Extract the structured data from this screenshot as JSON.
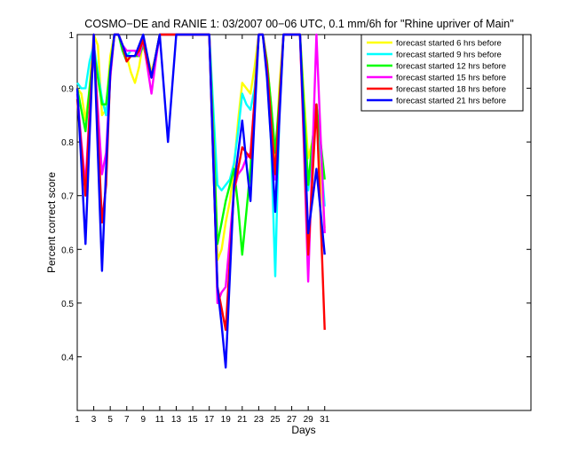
{
  "chart_data": {
    "type": "line",
    "title": "COSMO−DE and RANIE 1: 03/2007 00−06 UTC, 0.1 mm/6h for \"Rhine upriver of Main\"",
    "xlabel": "Days",
    "ylabel": "Percent correct score",
    "xlim": [
      1,
      56
    ],
    "ylim": [
      0.3,
      1.0
    ],
    "xticks": [
      1,
      3,
      5,
      7,
      9,
      11,
      13,
      15,
      17,
      19,
      21,
      23,
      25,
      27,
      29,
      31
    ],
    "yticks": [
      0.4,
      0.5,
      0.6,
      0.7,
      0.8,
      0.9,
      1
    ],
    "ytick_labels": [
      "0.4",
      "0.5",
      "0.6",
      "0.7",
      "0.8",
      "0.9",
      "1"
    ],
    "legend_position": "top-right",
    "x": [
      1,
      1.5,
      2,
      2.5,
      3,
      3.5,
      4,
      4.5,
      5,
      5.5,
      6,
      6.5,
      7,
      7.5,
      8,
      8.5,
      9,
      9.5,
      10,
      10.5,
      11,
      11.5,
      12,
      12.5,
      13,
      13.5,
      14,
      14.5,
      15,
      15.5,
      16,
      16.5,
      17,
      17.5,
      18,
      18.5,
      19,
      19.5,
      20,
      20.5,
      21,
      21.5,
      22,
      22.5,
      23,
      23.5,
      24,
      24.5,
      25,
      25.5,
      26,
      26.5,
      27,
      27.5,
      28,
      28.5,
      29,
      29.5,
      30,
      30.5,
      31
    ],
    "series": [
      {
        "name": "forecast started 6 hrs before",
        "color": "#ffff00",
        "values": [
          0.9,
          0.89,
          0.84,
          0.9,
          1.0,
          0.98,
          0.85,
          0.86,
          0.96,
          1.0,
          1.0,
          0.97,
          0.96,
          0.93,
          0.91,
          0.94,
          0.99,
          0.96,
          0.93,
          0.96,
          1.0,
          1.0,
          1.0,
          1.0,
          1.0,
          1.0,
          1.0,
          1.0,
          1.0,
          1.0,
          1.0,
          1.0,
          1.0,
          0.85,
          0.58,
          0.6,
          0.65,
          0.69,
          0.75,
          0.84,
          0.91,
          0.9,
          0.89,
          0.94,
          1.0,
          1.0,
          0.95,
          0.87,
          0.75,
          0.9,
          1.0,
          1.0,
          1.0,
          1.0,
          1.0,
          0.88,
          0.77,
          0.8,
          0.86,
          0.75,
          0.64
        ]
      },
      {
        "name": "forecast started 9 hrs before",
        "color": "#00ffff",
        "values": [
          0.91,
          0.9,
          0.9,
          0.95,
          0.98,
          0.93,
          0.88,
          0.85,
          0.94,
          1.0,
          1.0,
          0.97,
          0.96,
          0.97,
          0.97,
          0.96,
          0.99,
          0.95,
          0.92,
          0.96,
          1.0,
          1.0,
          1.0,
          1.0,
          1.0,
          1.0,
          1.0,
          1.0,
          1.0,
          1.0,
          1.0,
          1.0,
          1.0,
          0.86,
          0.72,
          0.71,
          0.72,
          0.73,
          0.76,
          0.82,
          0.89,
          0.87,
          0.86,
          0.9,
          1.0,
          1.0,
          0.93,
          0.8,
          0.55,
          0.85,
          1.0,
          1.0,
          1.0,
          1.0,
          1.0,
          0.84,
          0.71,
          0.78,
          0.87,
          0.78,
          0.68
        ]
      },
      {
        "name": "forecast started 12 hrs before",
        "color": "#00ff00",
        "values": [
          0.9,
          0.86,
          0.82,
          0.9,
          0.97,
          0.92,
          0.87,
          0.87,
          0.94,
          1.0,
          1.0,
          0.97,
          0.95,
          0.96,
          0.96,
          0.96,
          0.98,
          0.95,
          0.92,
          0.96,
          1.0,
          1.0,
          1.0,
          1.0,
          1.0,
          1.0,
          1.0,
          1.0,
          1.0,
          1.0,
          1.0,
          1.0,
          1.0,
          0.82,
          0.61,
          0.65,
          0.69,
          0.72,
          0.75,
          0.68,
          0.59,
          0.67,
          0.75,
          0.88,
          1.0,
          1.0,
          0.95,
          0.87,
          0.78,
          0.88,
          1.0,
          1.0,
          1.0,
          1.0,
          1.0,
          0.86,
          0.72,
          0.8,
          0.87,
          0.8,
          0.73
        ]
      },
      {
        "name": "forecast started 15 hrs before",
        "color": "#ff00ff",
        "values": [
          0.89,
          0.8,
          0.72,
          0.86,
          0.97,
          0.86,
          0.74,
          0.78,
          0.92,
          1.0,
          1.0,
          0.98,
          0.97,
          0.97,
          0.97,
          0.96,
          0.99,
          0.94,
          0.89,
          0.95,
          1.0,
          1.0,
          1.0,
          1.0,
          1.0,
          1.0,
          1.0,
          1.0,
          1.0,
          1.0,
          1.0,
          1.0,
          1.0,
          0.78,
          0.5,
          0.52,
          0.53,
          0.62,
          0.71,
          0.74,
          0.75,
          0.77,
          0.78,
          0.88,
          1.0,
          1.0,
          0.93,
          0.83,
          0.73,
          0.86,
          1.0,
          1.0,
          1.0,
          1.0,
          1.0,
          0.78,
          0.54,
          0.77,
          1.0,
          0.81,
          0.63
        ]
      },
      {
        "name": "forecast started 18 hrs before",
        "color": "#ff0000",
        "values": [
          0.88,
          0.79,
          0.7,
          0.85,
          1.0,
          0.82,
          0.65,
          0.72,
          0.93,
          1.0,
          1.0,
          0.98,
          0.95,
          0.96,
          0.96,
          0.97,
          0.99,
          0.95,
          0.92,
          0.96,
          1.0,
          1.0,
          1.0,
          1.0,
          1.0,
          1.0,
          1.0,
          1.0,
          1.0,
          1.0,
          1.0,
          1.0,
          1.0,
          0.76,
          0.53,
          0.49,
          0.45,
          0.58,
          0.71,
          0.75,
          0.79,
          0.78,
          0.77,
          0.88,
          1.0,
          1.0,
          0.94,
          0.84,
          0.74,
          0.87,
          1.0,
          1.0,
          1.0,
          1.0,
          1.0,
          0.8,
          0.59,
          0.73,
          0.87,
          0.66,
          0.45
        ]
      },
      {
        "name": "forecast started 21 hrs before",
        "color": "#0000ff",
        "values": [
          0.9,
          0.76,
          0.61,
          0.81,
          1.0,
          0.78,
          0.56,
          0.75,
          0.93,
          1.0,
          1.0,
          0.98,
          0.96,
          0.96,
          0.96,
          0.98,
          1.0,
          0.96,
          0.92,
          0.96,
          1.0,
          0.9,
          0.8,
          0.9,
          1.0,
          1.0,
          1.0,
          1.0,
          1.0,
          1.0,
          1.0,
          1.0,
          1.0,
          0.76,
          0.53,
          0.46,
          0.38,
          0.55,
          0.72,
          0.78,
          0.84,
          0.76,
          0.69,
          0.85,
          1.0,
          1.0,
          0.92,
          0.8,
          0.67,
          0.84,
          1.0,
          1.0,
          1.0,
          1.0,
          1.0,
          0.82,
          0.63,
          0.69,
          0.75,
          0.67,
          0.59
        ]
      }
    ]
  }
}
